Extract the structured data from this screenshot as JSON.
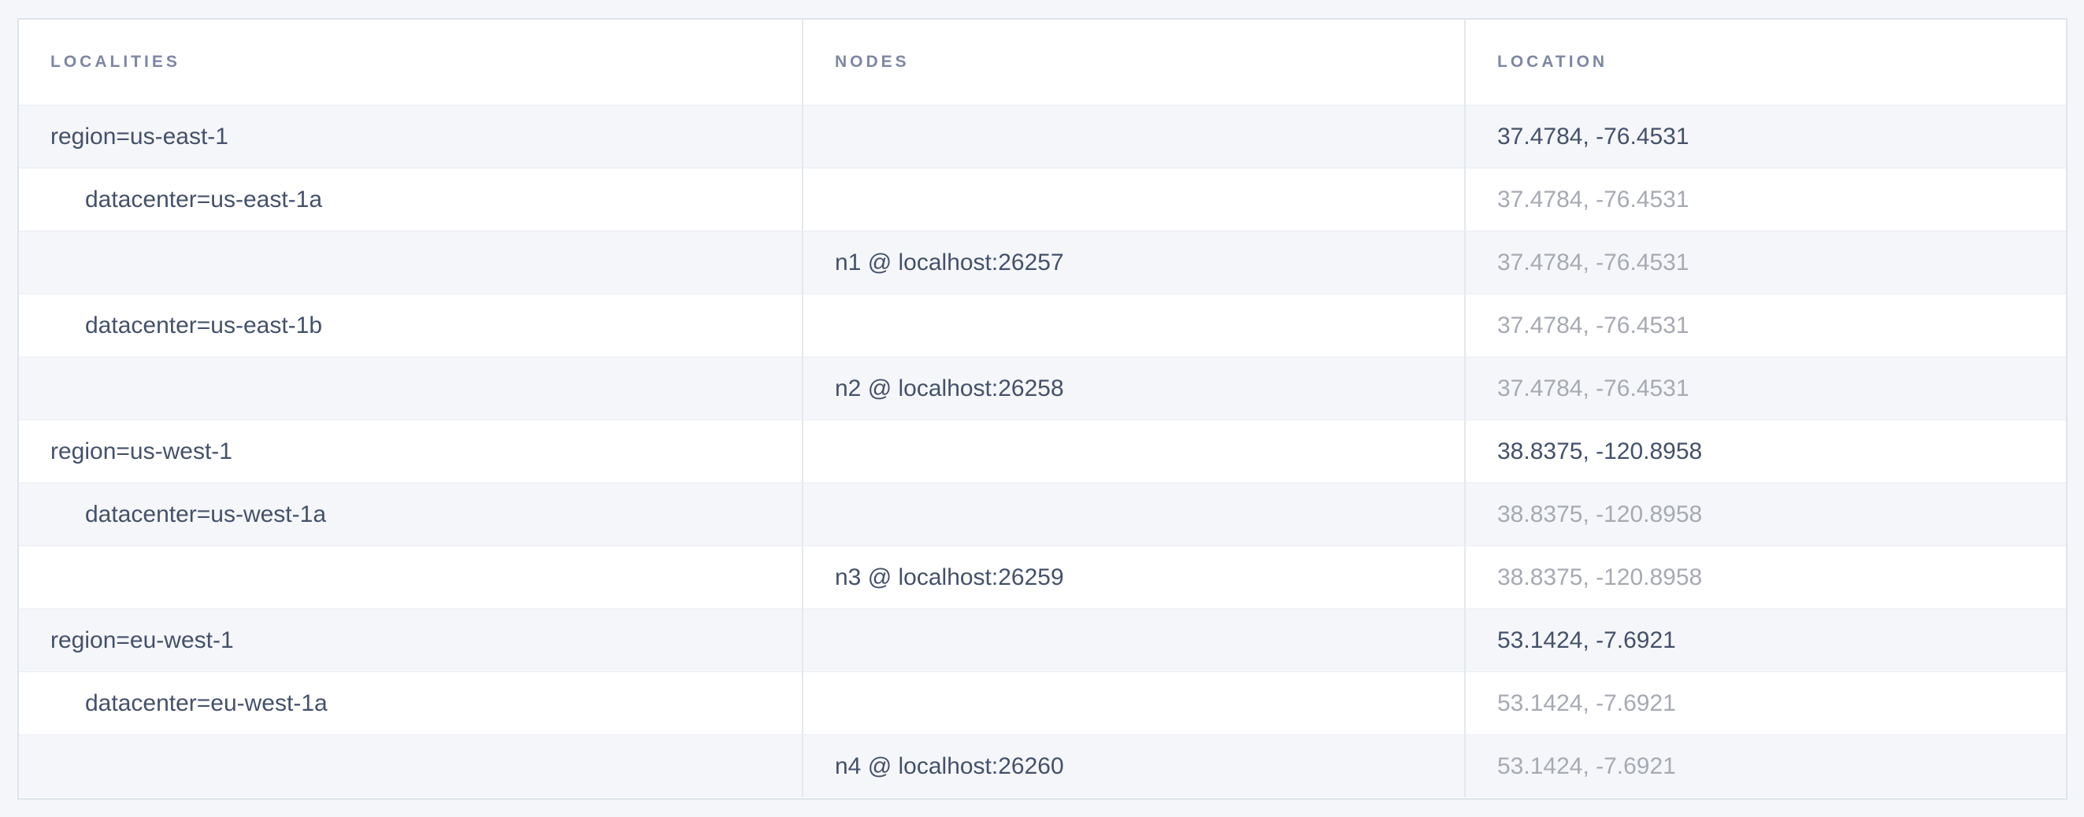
{
  "table": {
    "columns": [
      {
        "key": "localities",
        "label": "LOCALITIES"
      },
      {
        "key": "nodes",
        "label": "NODES"
      },
      {
        "key": "location",
        "label": "LOCATION"
      }
    ],
    "rows": [
      {
        "type": "region",
        "locality": "region=us-east-1",
        "node": "",
        "location": "37.4784, -76.4531",
        "location_muted": false
      },
      {
        "type": "datacenter",
        "locality": "datacenter=us-east-1a",
        "node": "",
        "location": "37.4784, -76.4531",
        "location_muted": true
      },
      {
        "type": "node",
        "locality": "",
        "node": "n1 @ localhost:26257",
        "location": "37.4784, -76.4531",
        "location_muted": true
      },
      {
        "type": "datacenter",
        "locality": "datacenter=us-east-1b",
        "node": "",
        "location": "37.4784, -76.4531",
        "location_muted": true
      },
      {
        "type": "node",
        "locality": "",
        "node": "n2 @ localhost:26258",
        "location": "37.4784, -76.4531",
        "location_muted": true
      },
      {
        "type": "region",
        "locality": "region=us-west-1",
        "node": "",
        "location": "38.8375, -120.8958",
        "location_muted": false
      },
      {
        "type": "datacenter",
        "locality": "datacenter=us-west-1a",
        "node": "",
        "location": "38.8375, -120.8958",
        "location_muted": true
      },
      {
        "type": "node",
        "locality": "",
        "node": "n3 @ localhost:26259",
        "location": "38.8375, -120.8958",
        "location_muted": true
      },
      {
        "type": "region",
        "locality": "region=eu-west-1",
        "node": "",
        "location": "53.1424, -7.6921",
        "location_muted": false
      },
      {
        "type": "datacenter",
        "locality": "datacenter=eu-west-1a",
        "node": "",
        "location": "53.1424, -7.6921",
        "location_muted": true
      },
      {
        "type": "node",
        "locality": "",
        "node": "n4 @ localhost:26260",
        "location": "53.1424, -7.6921",
        "location_muted": true
      }
    ],
    "colors": {
      "page_background": "#f4f6fa",
      "table_background": "#ffffff",
      "stripe_row_background": "#f4f6f9",
      "outer_border": "#dee4eb",
      "column_divider": "#e3e8ee",
      "row_divider": "#eaedf2",
      "header_text": "#7e87a4",
      "cell_text": "#44516b",
      "muted_text": "#a7aab2"
    }
  }
}
